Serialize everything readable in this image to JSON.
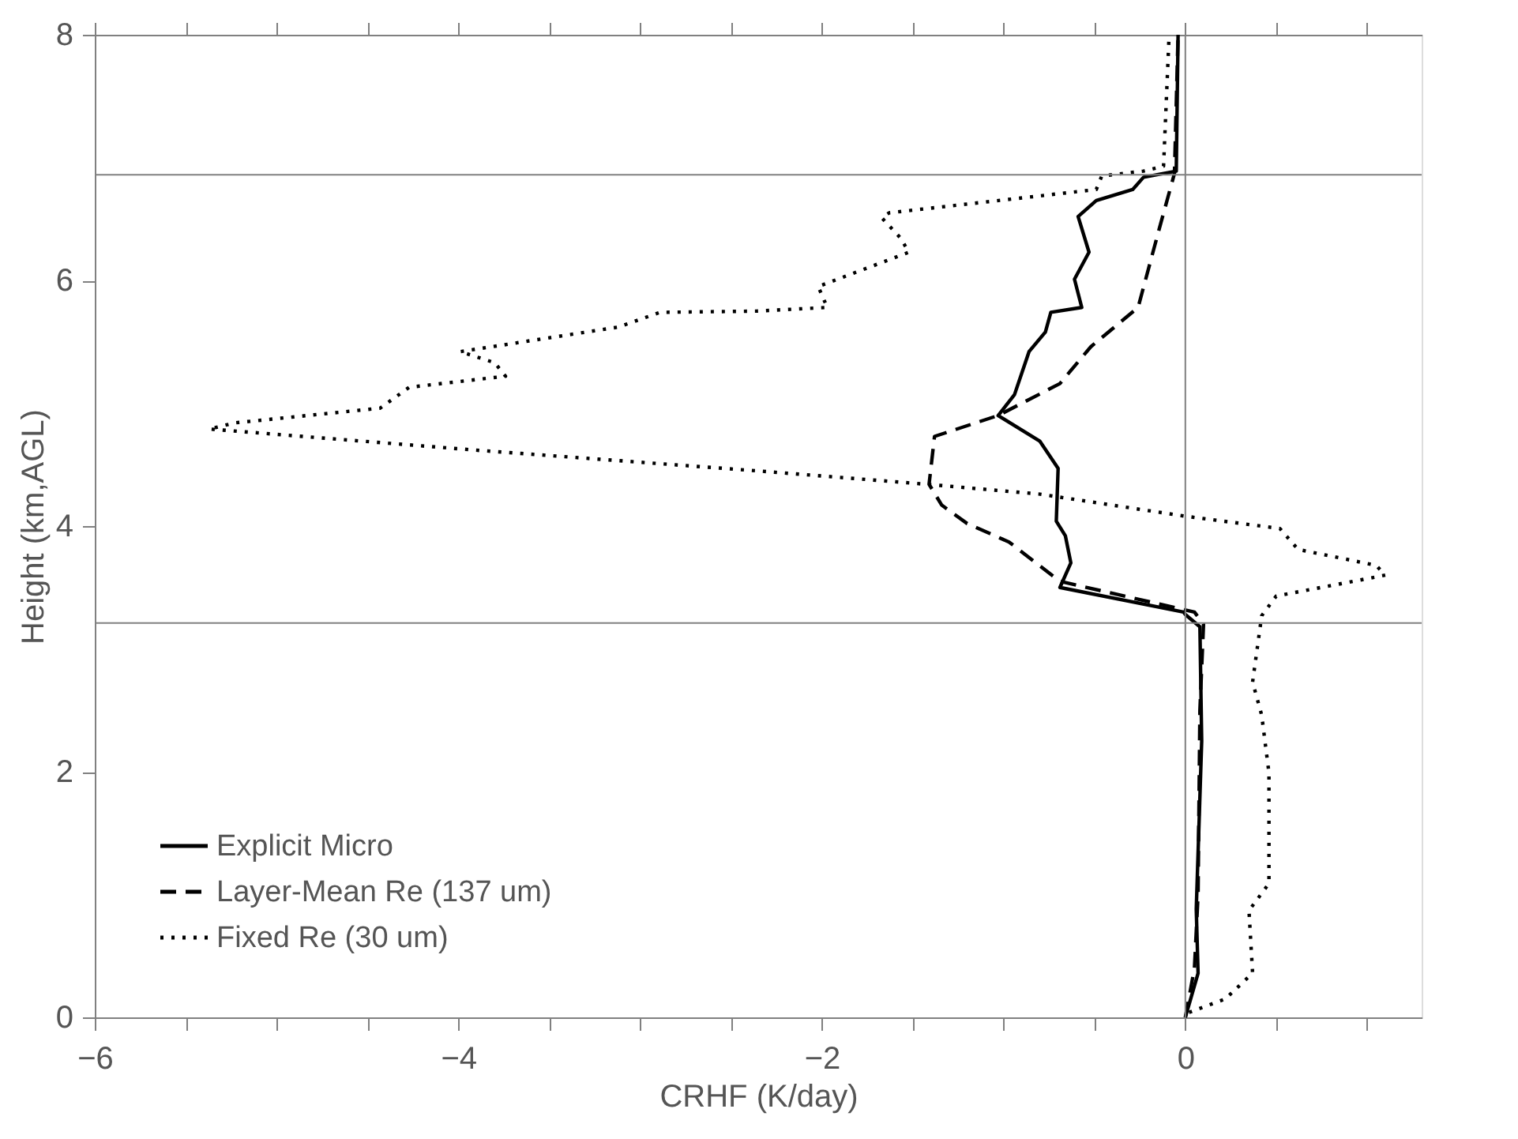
{
  "chart_data": {
    "type": "line",
    "xlabel": "CRHF (K/day)",
    "ylabel": "Height (km,AGL)",
    "xlim": [
      -6,
      1.3
    ],
    "ylim": [
      0,
      8
    ],
    "xticks": [
      -6,
      {
        "value": -5.5,
        "label": null
      },
      {
        "value": -5,
        "label": null
      },
      {
        "value": -4.5,
        "label": null
      },
      -4,
      {
        "value": -3.5,
        "label": null
      },
      {
        "value": -3,
        "label": null
      },
      {
        "value": -2.5,
        "label": null
      },
      -2,
      {
        "value": -1.5,
        "label": null
      },
      {
        "value": -1,
        "label": null
      },
      {
        "value": -0.5,
        "label": null
      },
      0,
      {
        "value": 0.5,
        "label": null
      },
      {
        "value": 1,
        "label": null
      }
    ],
    "yticks": [
      0,
      2,
      4,
      6,
      8
    ],
    "grid": false,
    "legend": "bottom left",
    "ref_lines": [
      {
        "axis": "y",
        "value": 6.86,
        "color": "#808080"
      },
      {
        "axis": "y",
        "value": 3.21,
        "color": "#808080"
      },
      {
        "axis": "x",
        "value": 0,
        "color": "#808080"
      }
    ],
    "series": [
      {
        "name": "Explicit Micro",
        "color": "#000000",
        "line_style": "solid",
        "x": [
          0,
          0.07,
          0.06,
          0.09,
          0.08,
          0,
          -0.01,
          -0.69,
          -0.63,
          -0.66,
          -0.71,
          -0.7,
          -0.8,
          -1.03,
          -0.94,
          -0.86,
          -0.77,
          -0.74,
          -0.57,
          -0.61,
          -0.53,
          -0.59,
          -0.49,
          -0.29,
          -0.23,
          -0.05,
          -0.04
        ],
        "values": [
          0,
          0.36,
          0.88,
          2.25,
          3.18,
          3.28,
          3.3,
          3.5,
          3.7,
          3.92,
          4.04,
          4.47,
          4.69,
          4.9,
          5.07,
          5.42,
          5.58,
          5.74,
          5.78,
          6.01,
          6.23,
          6.52,
          6.65,
          6.74,
          6.84,
          6.89,
          8
        ]
      },
      {
        "name": "Layer-Mean Re (137 um)",
        "color": "#000000",
        "line_style": "dashed",
        "x": [
          0,
          0.05,
          0.07,
          0.08,
          0.1,
          0.05,
          -0.69,
          -0.97,
          -1.2,
          -1.34,
          -1.41,
          -1.38,
          -1.03,
          -0.69,
          -0.52,
          -0.26,
          -0.14,
          -0.06,
          -0.04
        ],
        "values": [
          0,
          0.4,
          1,
          2.5,
          3.2,
          3.3,
          3.55,
          3.87,
          4.02,
          4.17,
          4.34,
          4.73,
          4.9,
          5.16,
          5.46,
          5.78,
          6.44,
          6.87,
          8
        ]
      },
      {
        "name": "Fixed Re (30 um)",
        "color": "#000000",
        "line_style": "dotted",
        "x": [
          0.02,
          0.22,
          0.37,
          0.35,
          0.46,
          0.46,
          0.42,
          0.37,
          0.42,
          0.5,
          1.1,
          1.05,
          0.62,
          0.52,
          0,
          -0.8,
          -1.42,
          -2.36,
          -3.92,
          -5.37,
          -5.23,
          -4.43,
          -4.27,
          -3.74,
          -3.8,
          -3.99,
          -3.12,
          -2.89,
          -2.36,
          -1.97,
          -2.02,
          -1.52,
          -1.57,
          -1.67,
          -1.63,
          -0.49,
          -0.46,
          -0.23,
          -0.12,
          -0.09
        ],
        "values": [
          0.04,
          0.15,
          0.36,
          0.87,
          1.09,
          1.99,
          2.46,
          2.73,
          3.27,
          3.43,
          3.6,
          3.68,
          3.81,
          3.98,
          4.08,
          4.26,
          4.34,
          4.45,
          4.62,
          4.79,
          4.84,
          4.96,
          5.13,
          5.22,
          5.33,
          5.42,
          5.62,
          5.74,
          5.75,
          5.78,
          5.95,
          6.23,
          6.35,
          6.51,
          6.55,
          6.74,
          6.85,
          6.89,
          6.93,
          7.98
        ]
      }
    ]
  }
}
